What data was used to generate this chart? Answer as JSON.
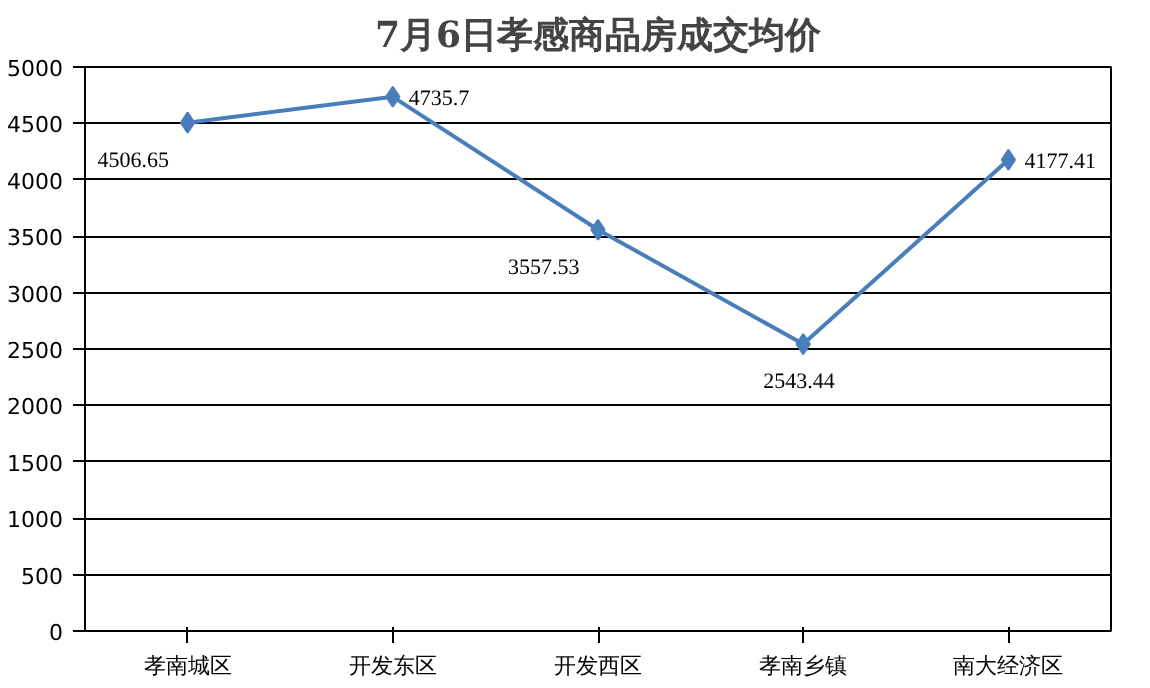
{
  "chart_data": {
    "type": "line",
    "title": "7月6日孝感商品房成交均价",
    "categories": [
      "孝南城区",
      "开发东区",
      "开发西区",
      "孝南乡镇",
      "南大经济区"
    ],
    "series": [
      {
        "color": "#4a7ebb",
        "values": [
          4506.65,
          4735.7,
          3557.53,
          2543.44,
          4177.41
        ]
      }
    ],
    "ylim": [
      0,
      5000
    ],
    "yticks": [
      0,
      500,
      1000,
      1500,
      2000,
      2500,
      3000,
      3500,
      4000,
      4500,
      5000
    ],
    "grid": "y",
    "marker": "diamond",
    "line_style": "solid",
    "data_labels": true
  }
}
